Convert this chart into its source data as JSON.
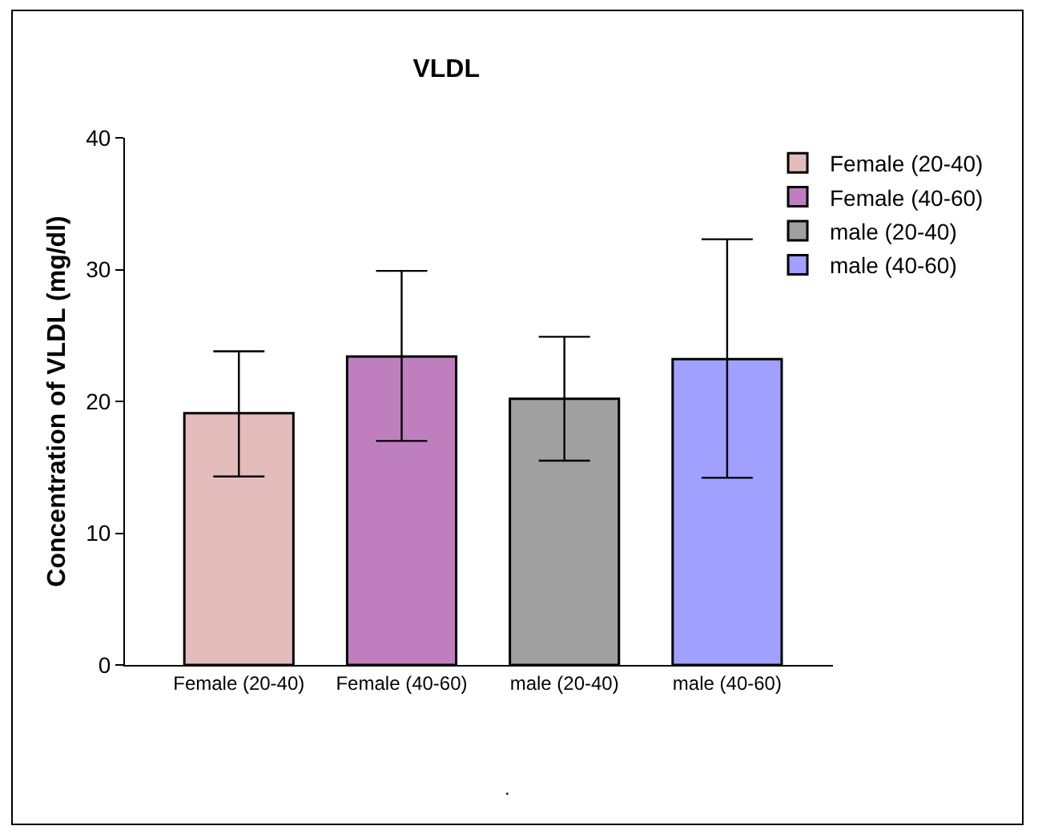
{
  "chart_data": {
    "type": "bar",
    "title": "VLDL",
    "ylabel": "Concentration of VLDL (mg/dl)",
    "categories": [
      "Female (20-40)",
      "Female (40-60)",
      "male (20-40)",
      "male (40-60)"
    ],
    "series": [
      {
        "name": "Female (20-40)",
        "color": "#e4bcbc",
        "values": [
          19.1,
          null,
          null,
          null
        ],
        "errors": [
          [
            14.3,
            23.8
          ],
          null,
          null,
          null
        ]
      },
      {
        "name": "Female (40-60)",
        "color": "#bf7fbf",
        "values": [
          null,
          23.4,
          null,
          null
        ],
        "errors": [
          null,
          [
            17.0,
            29.9
          ],
          null,
          null
        ]
      },
      {
        "name": "male (20-40)",
        "color": "#a0a0a0",
        "values": [
          null,
          null,
          20.2,
          null
        ],
        "errors": [
          null,
          null,
          [
            15.5,
            24.9
          ],
          null
        ]
      },
      {
        "name": "male (40-60)",
        "color": "#a0a0ff",
        "values": [
          null,
          null,
          null,
          23.2
        ],
        "errors": [
          null,
          null,
          null,
          [
            14.2,
            32.3
          ]
        ]
      }
    ],
    "ylim": [
      0,
      40
    ],
    "yticks": [
      0,
      10,
      20,
      30,
      40
    ],
    "grid": false,
    "legend": "top right",
    "annotations": [
      "."
    ]
  }
}
